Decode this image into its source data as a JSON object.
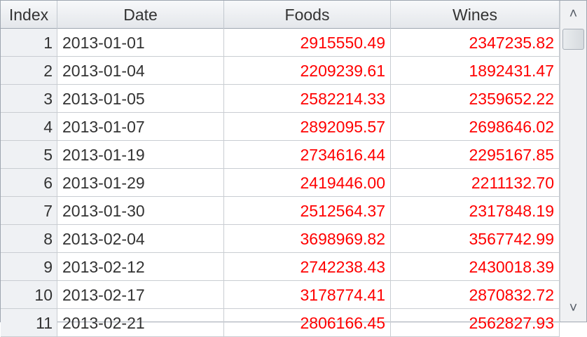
{
  "table": {
    "columns": [
      "Index",
      "Date",
      "Foods",
      "Wines"
    ],
    "value_color": "#ff0000",
    "rows": [
      {
        "index": "1",
        "date": "2013-01-01",
        "foods": "2915550.49",
        "wines": "2347235.82"
      },
      {
        "index": "2",
        "date": "2013-01-04",
        "foods": "2209239.61",
        "wines": "1892431.47"
      },
      {
        "index": "3",
        "date": "2013-01-05",
        "foods": "2582214.33",
        "wines": "2359652.22"
      },
      {
        "index": "4",
        "date": "2013-01-07",
        "foods": "2892095.57",
        "wines": "2698646.02"
      },
      {
        "index": "5",
        "date": "2013-01-19",
        "foods": "2734616.44",
        "wines": "2295167.85"
      },
      {
        "index": "6",
        "date": "2013-01-29",
        "foods": "2419446.00",
        "wines": "2211132.70"
      },
      {
        "index": "7",
        "date": "2013-01-30",
        "foods": "2512564.37",
        "wines": "2317848.19"
      },
      {
        "index": "8",
        "date": "2013-02-04",
        "foods": "3698969.82",
        "wines": "3567742.99"
      },
      {
        "index": "9",
        "date": "2013-02-12",
        "foods": "2742238.43",
        "wines": "2430018.39"
      },
      {
        "index": "10",
        "date": "2013-02-17",
        "foods": "3178774.41",
        "wines": "2870832.72"
      },
      {
        "index": "11",
        "date": "2013-02-21",
        "foods": "2806166.45",
        "wines": "2562827.93"
      }
    ]
  },
  "scrollbar": {
    "up_icon": "chevron-up-icon",
    "down_icon": "chevron-down-icon",
    "up_glyph": "˄",
    "down_glyph": "˅"
  }
}
